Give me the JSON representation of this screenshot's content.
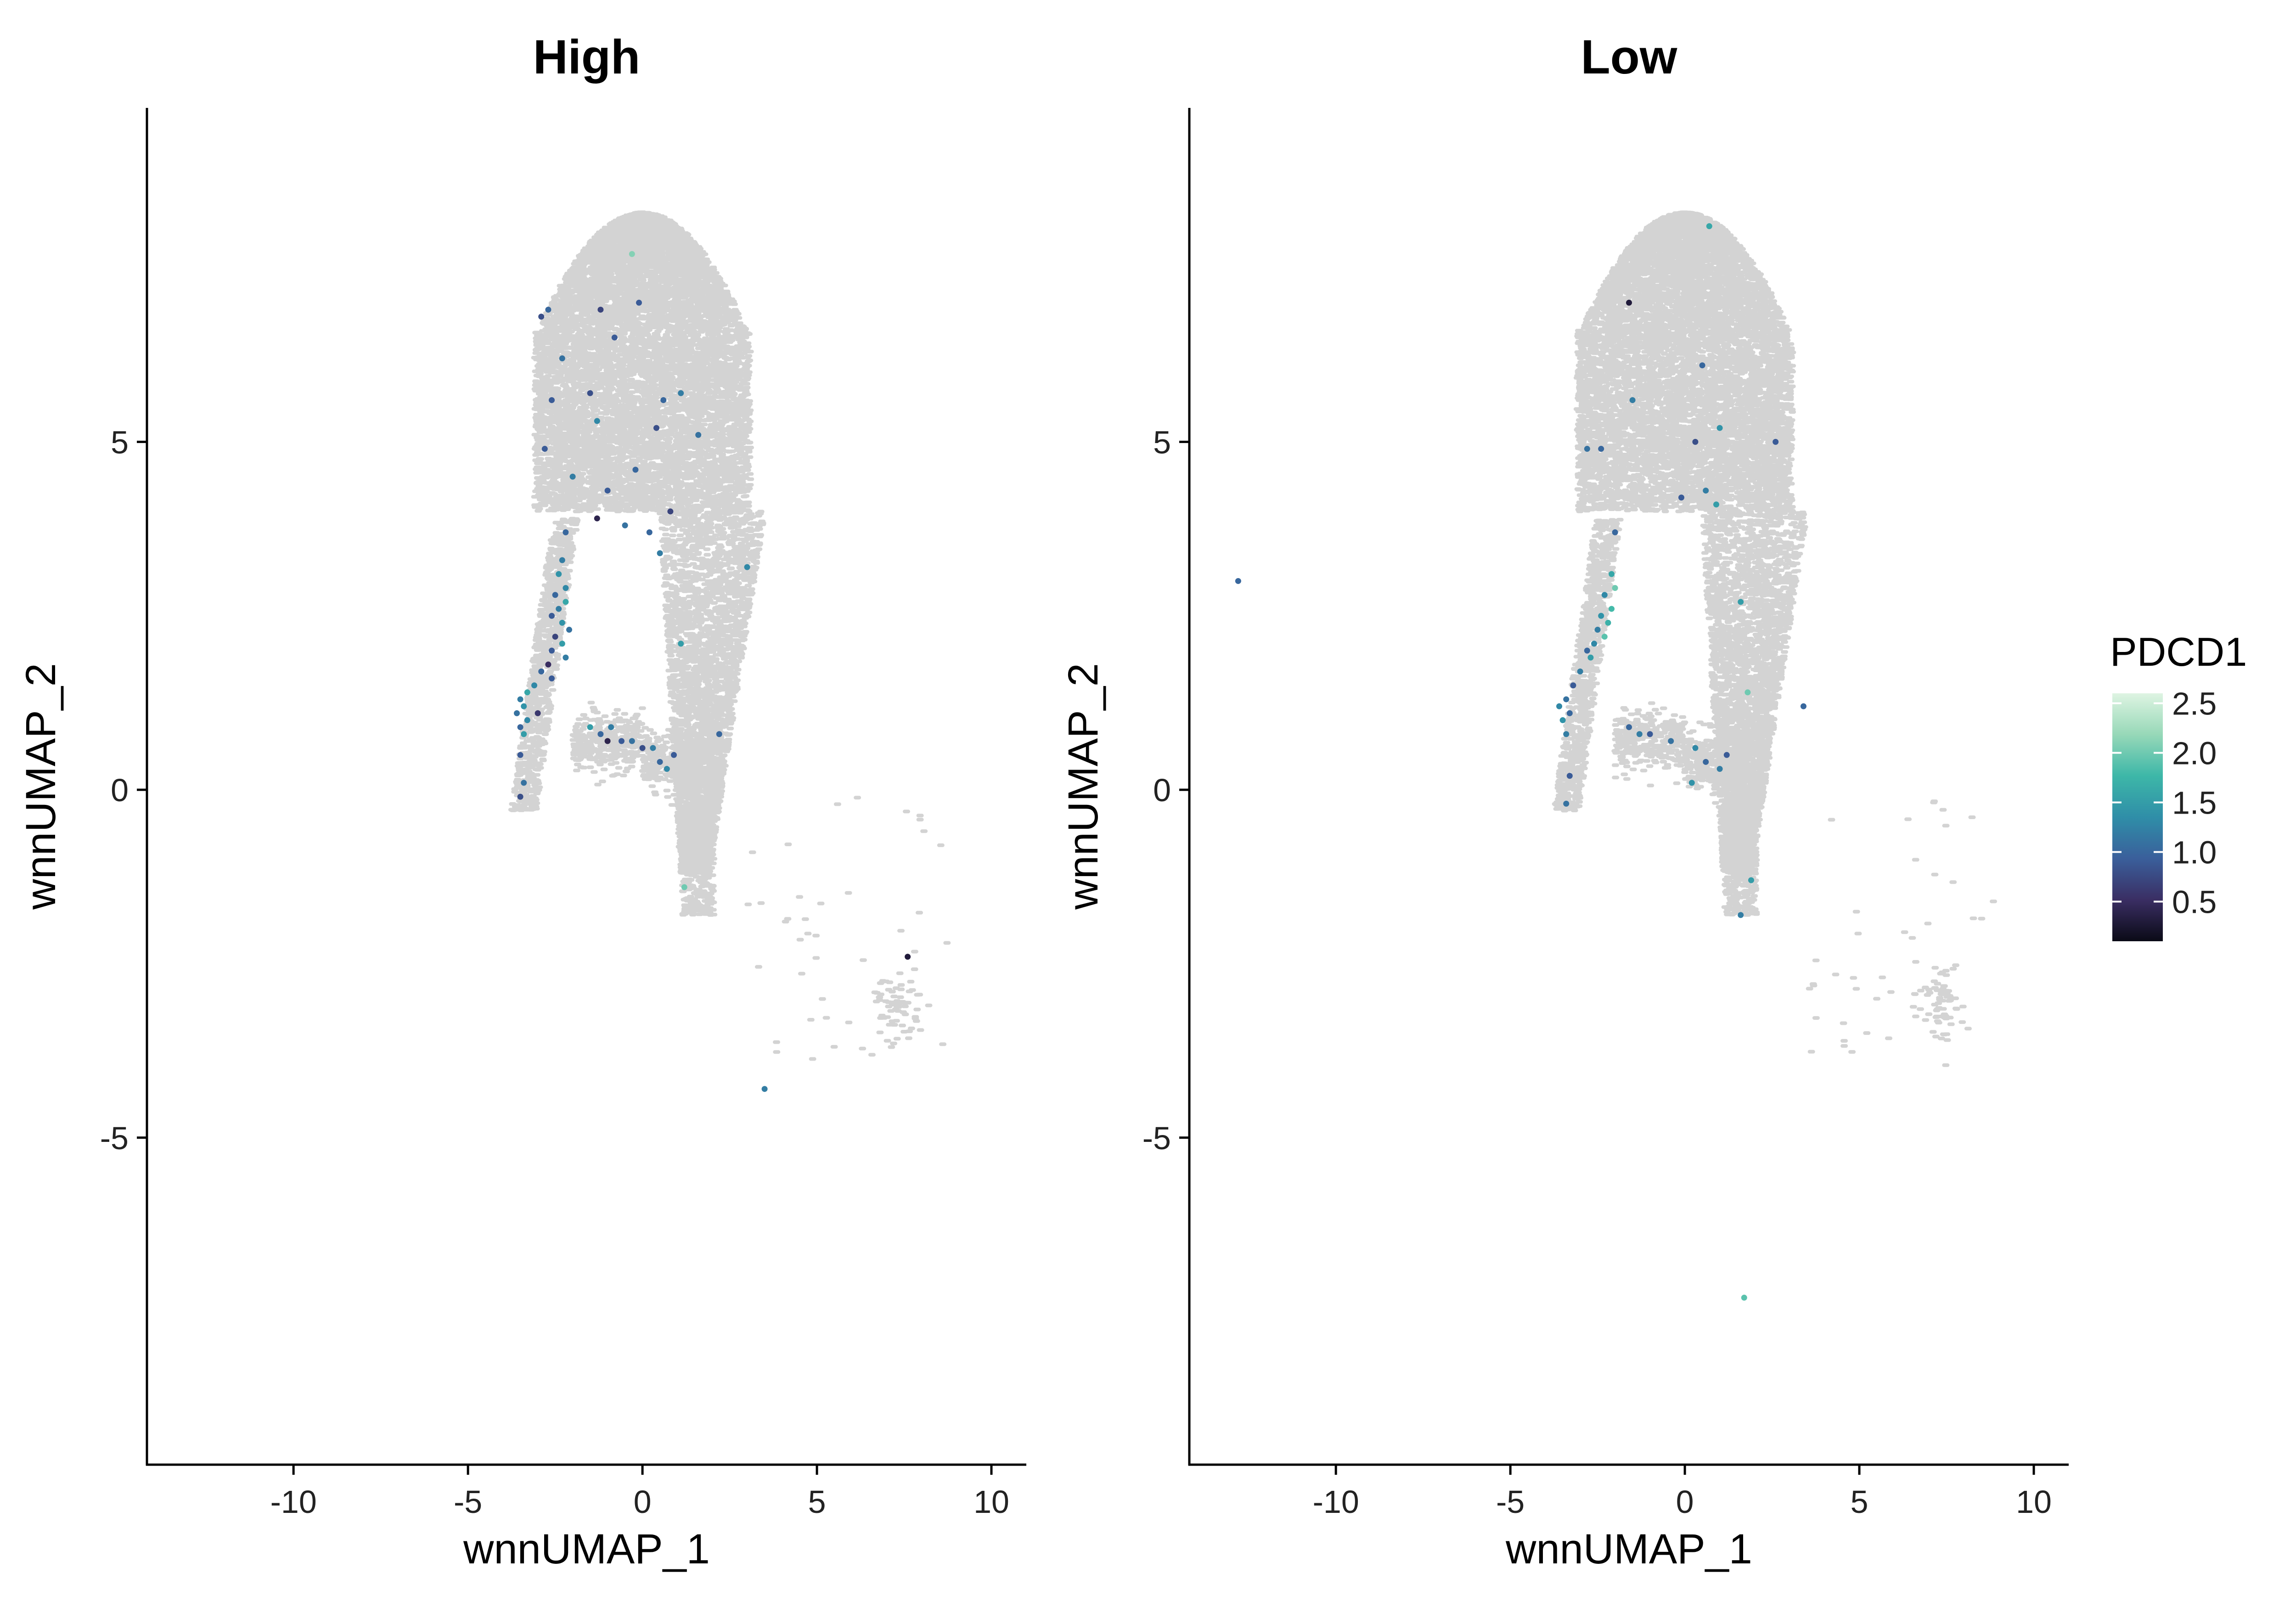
{
  "chart_data": [
    {
      "type": "scatter",
      "title": "High",
      "xlabel": "wnnUMAP_1",
      "ylabel": "wnnUMAP_2",
      "xlim": [
        -14.2,
        11.0
      ],
      "ylim": [
        -9.7,
        9.8
      ],
      "xticks": [
        -10,
        -5,
        0,
        5,
        10
      ],
      "yticks": [
        -5,
        0,
        5
      ],
      "xtick_labels": [
        "-10",
        "-5",
        "0",
        "5",
        "10"
      ],
      "ytick_labels": [
        "-5",
        "0",
        "5"
      ],
      "grid": false,
      "background_color": "#d3d3d3",
      "expressing_cells": [
        [
          -0.3,
          7.7,
          2.1
        ],
        [
          -2.7,
          6.9,
          1.0
        ],
        [
          -2.9,
          6.8,
          0.8
        ],
        [
          -1.2,
          6.9,
          0.7
        ],
        [
          -0.1,
          7.0,
          0.9
        ],
        [
          -2.3,
          6.2,
          1.1
        ],
        [
          -0.8,
          6.5,
          0.9
        ],
        [
          -1.5,
          5.7,
          0.8
        ],
        [
          -2.6,
          5.6,
          0.9
        ],
        [
          0.6,
          5.6,
          1.0
        ],
        [
          1.1,
          5.7,
          1.2
        ],
        [
          -1.3,
          5.3,
          1.3
        ],
        [
          0.4,
          5.2,
          0.8
        ],
        [
          1.6,
          5.1,
          1.1
        ],
        [
          -2.8,
          4.9,
          0.9
        ],
        [
          -0.2,
          4.6,
          1.0
        ],
        [
          -2.0,
          4.5,
          1.2
        ],
        [
          -1.0,
          4.3,
          0.9
        ],
        [
          0.8,
          4.0,
          0.7
        ],
        [
          -0.5,
          3.8,
          1.1
        ],
        [
          -1.3,
          3.9,
          0.4
        ],
        [
          0.2,
          3.7,
          1.0
        ],
        [
          3.0,
          3.2,
          1.3
        ],
        [
          0.5,
          3.4,
          1.2
        ],
        [
          -2.2,
          3.7,
          1.0
        ],
        [
          -2.3,
          3.3,
          1.2
        ],
        [
          -2.4,
          3.1,
          1.4
        ],
        [
          -2.2,
          2.9,
          1.3
        ],
        [
          -2.5,
          2.8,
          1.0
        ],
        [
          -2.2,
          2.7,
          1.6
        ],
        [
          -2.4,
          2.6,
          1.2
        ],
        [
          -2.6,
          2.5,
          0.9
        ],
        [
          -2.3,
          2.4,
          1.4
        ],
        [
          -2.1,
          2.3,
          1.1
        ],
        [
          -2.5,
          2.2,
          0.7
        ],
        [
          -2.3,
          2.1,
          1.5
        ],
        [
          -2.6,
          2.0,
          0.9
        ],
        [
          -2.2,
          1.9,
          1.2
        ],
        [
          -2.7,
          1.8,
          0.5
        ],
        [
          -2.9,
          1.7,
          1.0
        ],
        [
          -3.1,
          1.5,
          1.3
        ],
        [
          -3.3,
          1.4,
          1.6
        ],
        [
          -3.5,
          1.3,
          1.2
        ],
        [
          -3.4,
          1.2,
          1.4
        ],
        [
          -3.6,
          1.1,
          1.1
        ],
        [
          -3.3,
          1.0,
          1.3
        ],
        [
          -3.5,
          0.9,
          1.0
        ],
        [
          -3.4,
          0.8,
          1.5
        ],
        [
          -3.5,
          0.5,
          0.9
        ],
        [
          -3.4,
          0.1,
          1.1
        ],
        [
          -3.5,
          -0.1,
          0.8
        ],
        [
          -3.0,
          1.1,
          0.6
        ],
        [
          -2.6,
          1.6,
          0.9
        ],
        [
          -1.5,
          0.9,
          1.5
        ],
        [
          -1.2,
          0.8,
          1.0
        ],
        [
          -0.9,
          0.9,
          1.2
        ],
        [
          -0.6,
          0.7,
          0.9
        ],
        [
          -0.3,
          0.7,
          1.1
        ],
        [
          0.0,
          0.6,
          0.8
        ],
        [
          0.3,
          0.6,
          1.2
        ],
        [
          0.5,
          0.4,
          1.0
        ],
        [
          0.7,
          0.3,
          1.3
        ],
        [
          0.9,
          0.5,
          0.9
        ],
        [
          -1.0,
          0.7,
          0.4
        ],
        [
          2.2,
          0.8,
          1.0
        ],
        [
          1.1,
          2.1,
          1.5
        ],
        [
          1.2,
          -1.4,
          2.0
        ],
        [
          3.5,
          -4.3,
          1.2
        ],
        [
          7.6,
          -2.4,
          0.3
        ]
      ]
    },
    {
      "type": "scatter",
      "title": "Low",
      "xlabel": "wnnUMAP_1",
      "ylabel": "wnnUMAP_2",
      "xlim": [
        -14.2,
        11.0
      ],
      "ylim": [
        -9.7,
        9.8
      ],
      "xticks": [
        -10,
        -5,
        0,
        5,
        10
      ],
      "yticks": [
        -5,
        0,
        5
      ],
      "xtick_labels": [
        "-10",
        "-5",
        "0",
        "5",
        "10"
      ],
      "ytick_labels": [
        "-5",
        "0",
        "5"
      ],
      "grid": false,
      "background_color": "#d3d3d3",
      "expressing_cells": [
        [
          0.7,
          8.1,
          1.6
        ],
        [
          -1.6,
          7.0,
          0.3
        ],
        [
          0.5,
          6.1,
          1.0
        ],
        [
          -1.5,
          5.6,
          1.2
        ],
        [
          0.3,
          5.0,
          0.8
        ],
        [
          1.0,
          5.2,
          1.4
        ],
        [
          2.6,
          5.0,
          0.9
        ],
        [
          -2.8,
          4.9,
          1.1
        ],
        [
          -2.4,
          4.9,
          1.0
        ],
        [
          0.6,
          4.3,
          1.2
        ],
        [
          0.9,
          4.1,
          1.5
        ],
        [
          -0.1,
          4.2,
          0.9
        ],
        [
          -2.0,
          3.7,
          1.0
        ],
        [
          -2.1,
          3.1,
          1.6
        ],
        [
          -2.0,
          2.9,
          2.0
        ],
        [
          -2.3,
          2.8,
          1.3
        ],
        [
          -2.1,
          2.6,
          1.8
        ],
        [
          -2.4,
          2.5,
          1.4
        ],
        [
          -2.2,
          2.4,
          1.7
        ],
        [
          -2.5,
          2.3,
          1.2
        ],
        [
          -2.3,
          2.2,
          1.9
        ],
        [
          -2.6,
          2.1,
          1.3
        ],
        [
          -2.8,
          2.0,
          1.0
        ],
        [
          -2.7,
          1.9,
          1.5
        ],
        [
          -3.0,
          1.7,
          1.2
        ],
        [
          -3.2,
          1.5,
          0.9
        ],
        [
          -3.4,
          1.3,
          1.1
        ],
        [
          -3.6,
          1.2,
          1.3
        ],
        [
          -3.3,
          1.1,
          1.0
        ],
        [
          -3.5,
          1.0,
          1.4
        ],
        [
          -3.4,
          0.8,
          1.2
        ],
        [
          -3.3,
          0.2,
          0.9
        ],
        [
          -3.4,
          -0.2,
          1.1
        ],
        [
          -1.6,
          0.9,
          1.0
        ],
        [
          -1.3,
          0.8,
          1.2
        ],
        [
          -1.0,
          0.8,
          0.9
        ],
        [
          -0.4,
          0.7,
          1.1
        ],
        [
          0.3,
          0.6,
          1.3
        ],
        [
          0.6,
          0.4,
          1.0
        ],
        [
          1.0,
          0.3,
          1.2
        ],
        [
          1.2,
          0.5,
          0.9
        ],
        [
          1.6,
          2.7,
          1.5
        ],
        [
          1.8,
          1.4,
          2.0
        ],
        [
          3.4,
          1.2,
          1.0
        ],
        [
          0.2,
          0.1,
          1.4
        ],
        [
          1.9,
          -1.3,
          1.5
        ],
        [
          1.6,
          -1.8,
          1.2
        ],
        [
          1.7,
          -7.3,
          1.9
        ],
        [
          -12.8,
          3.0,
          1.0
        ]
      ]
    }
  ],
  "legend": {
    "title": "PDCD1",
    "ticks": [
      0.5,
      1.0,
      1.5,
      2.0,
      2.5
    ],
    "tick_labels": [
      "0.5",
      "1.0",
      "1.5",
      "2.0",
      "2.5"
    ],
    "range": [
      0.1,
      2.6
    ],
    "colors": [
      "#0a0a16",
      "#3a2e63",
      "#3a5f9b",
      "#2f8ea8",
      "#3db7a8",
      "#97d8b8",
      "#def4e2"
    ],
    "placement": "right"
  }
}
